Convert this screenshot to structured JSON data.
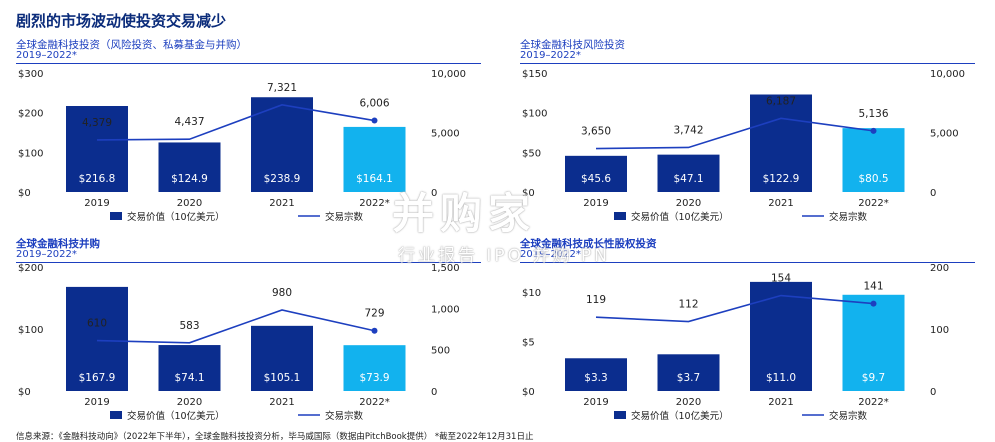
{
  "title": "剧烈的市场波动使投资交易减少",
  "footnote": "信息来源：《金融科技动向》（2022年下半年），全球金融科技投资分析，毕马威国际（数据由PitchBook提供）  *截至2022年12月31日止",
  "watermark": {
    "main": "并购家",
    "sub": "行业报告 IPO 并购 PN"
  },
  "colors": {
    "dark": "#0b2d8e",
    "light": "#12b2ee",
    "line": "#1d3fbf"
  },
  "chart_data": [
    {
      "type": "bar",
      "title": "全球金融科技投资（风险投资、私募基金与并购）",
      "subtitle": "2019–2022*",
      "categories": [
        "2019",
        "2020",
        "2021",
        "2022*"
      ],
      "series": [
        {
          "name": "交易价值（10亿美元）",
          "axis": "left",
          "values": [
            216.8,
            124.9,
            238.9,
            164.1
          ],
          "labels": [
            "$216.8",
            "$124.9",
            "$238.9",
            "$164.1"
          ],
          "colors": [
            "#0b2d8e",
            "#0b2d8e",
            "#0b2d8e",
            "#12b2ee"
          ]
        },
        {
          "name": "交易宗数",
          "axis": "right",
          "kind": "line",
          "values": [
            4379,
            4437,
            7321,
            6006
          ],
          "labels": [
            "4,379",
            "4,437",
            "7,321",
            "6,006"
          ]
        }
      ],
      "left_axis": {
        "ticks": [
          "$0",
          "$100",
          "$200",
          "$300"
        ],
        "ylim": [
          0,
          300
        ]
      },
      "right_axis": {
        "ticks": [
          "0",
          "5,000",
          "10,000"
        ],
        "ylim": [
          0,
          10000
        ]
      }
    },
    {
      "type": "bar",
      "title": "全球金融科技风险投资",
      "subtitle": "2019–2022*",
      "categories": [
        "2019",
        "2020",
        "2021",
        "2022*"
      ],
      "series": [
        {
          "name": "交易价值（10亿美元）",
          "axis": "left",
          "values": [
            45.6,
            47.1,
            122.9,
            80.5
          ],
          "labels": [
            "$45.6",
            "$47.1",
            "$122.9",
            "$80.5"
          ],
          "colors": [
            "#0b2d8e",
            "#0b2d8e",
            "#0b2d8e",
            "#12b2ee"
          ]
        },
        {
          "name": "交易宗数",
          "axis": "right",
          "kind": "line",
          "values": [
            3650,
            3742,
            6187,
            5136
          ],
          "labels": [
            "3,650",
            "3,742",
            "6,187",
            "5,136"
          ]
        }
      ],
      "left_axis": {
        "ticks": [
          "$0",
          "$50",
          "$100",
          "$150"
        ],
        "ylim": [
          0,
          150
        ]
      },
      "right_axis": {
        "ticks": [
          "0",
          "5,000",
          "10,000"
        ],
        "ylim": [
          0,
          10000
        ]
      }
    },
    {
      "type": "bar",
      "title": "全球金融科技并购",
      "subtitle": "2019–2022*",
      "categories": [
        "2019",
        "2020",
        "2021",
        "2022*"
      ],
      "series": [
        {
          "name": "交易价值（10亿美元）",
          "axis": "left",
          "values": [
            167.9,
            74.1,
            105.1,
            73.9
          ],
          "labels": [
            "$167.9",
            "$74.1",
            "$105.1",
            "$73.9"
          ],
          "colors": [
            "#0b2d8e",
            "#0b2d8e",
            "#0b2d8e",
            "#12b2ee"
          ]
        },
        {
          "name": "交易宗数",
          "axis": "right",
          "kind": "line",
          "values": [
            610,
            583,
            980,
            729
          ],
          "labels": [
            "610",
            "583",
            "980",
            "729"
          ]
        }
      ],
      "left_axis": {
        "ticks": [
          "$0",
          "$100",
          "$200"
        ],
        "ylim": [
          0,
          200
        ]
      },
      "right_axis": {
        "ticks": [
          "0",
          "500",
          "1,000",
          "1,500"
        ],
        "ylim": [
          0,
          1500
        ]
      }
    },
    {
      "type": "bar",
      "title": "全球金融科技成长性股权投资",
      "subtitle": "2019–2022*",
      "categories": [
        "2019",
        "2020",
        "2021",
        "2022*"
      ],
      "series": [
        {
          "name": "交易价值（10亿美元）",
          "axis": "left",
          "values": [
            3.3,
            3.7,
            11.0,
            9.7
          ],
          "labels": [
            "$3.3",
            "$3.7",
            "$11.0",
            "$9.7"
          ],
          "colors": [
            "#0b2d8e",
            "#0b2d8e",
            "#0b2d8e",
            "#12b2ee"
          ]
        },
        {
          "name": "交易宗数",
          "axis": "right",
          "kind": "line",
          "values": [
            119,
            112,
            154,
            141
          ],
          "labels": [
            "119",
            "112",
            "154",
            "141"
          ]
        }
      ],
      "left_axis": {
        "ticks": [
          "$0",
          "$5",
          "$10"
        ],
        "ylim": [
          0,
          12.5
        ]
      },
      "right_axis": {
        "ticks": [
          "0",
          "100",
          "200"
        ],
        "ylim": [
          0,
          200
        ]
      }
    }
  ]
}
